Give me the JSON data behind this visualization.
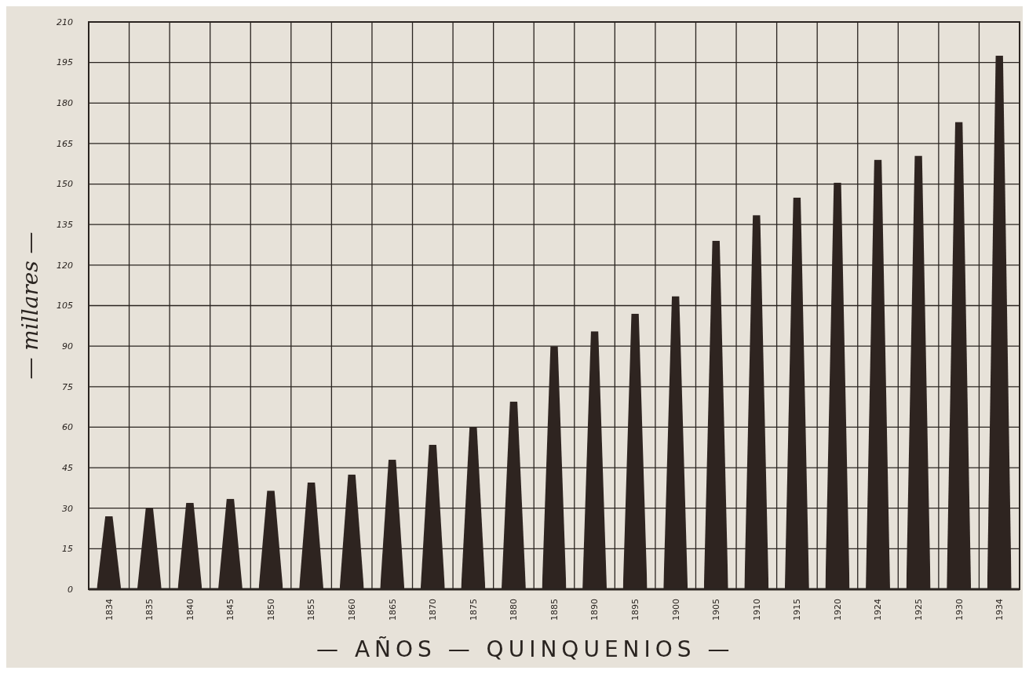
{
  "chart_data": {
    "type": "bar",
    "xlabel": "— AÑOS — QUINQUENIOS —",
    "ylabel": "— millares —",
    "categories": [
      "1834",
      "1835",
      "1840",
      "1845",
      "1850",
      "1855",
      "1860",
      "1865",
      "1870",
      "1875",
      "1880",
      "1885",
      "1890",
      "1895",
      "1900",
      "1905",
      "1910",
      "1915",
      "1920",
      "1924",
      "1925",
      "1930",
      "1934"
    ],
    "values": [
      27,
      30,
      32,
      33.5,
      36.5,
      39.5,
      42.5,
      48,
      53.5,
      60,
      69.5,
      90,
      95.5,
      102,
      108.5,
      129,
      138.5,
      145,
      150.5,
      159,
      160.5,
      173,
      197.5
    ],
    "color": "#2e2420",
    "ylim": [
      0,
      210
    ],
    "yticks": [
      0,
      15,
      30,
      45,
      60,
      75,
      90,
      105,
      120,
      135,
      150,
      165,
      180,
      195,
      210
    ],
    "grid": true
  }
}
